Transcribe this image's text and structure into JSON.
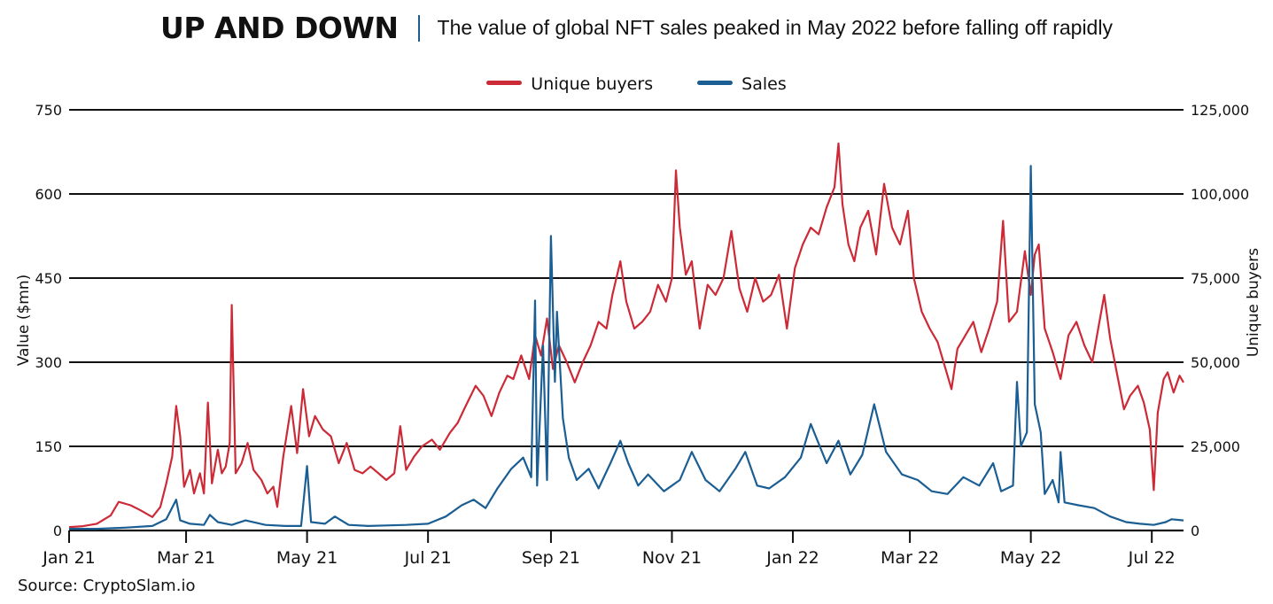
{
  "headline": "UP AND DOWN",
  "subtitle": "The value of global NFT sales peaked in May 2022 before falling off rapidly",
  "source": "Source: CryptoSlam.io",
  "colors": {
    "unique_buyers": "#cc2a36",
    "sales": "#1b5e93",
    "gridline": "#111111"
  },
  "chart_data": {
    "type": "line",
    "x_axis": {
      "tick_labels": [
        "Jan 21",
        "Mar 21",
        "May 21",
        "Jul 21",
        "Sep 21",
        "Nov 21",
        "Jan 22",
        "Mar 22",
        "May 22",
        "Jul 22"
      ],
      "tick_dates": [
        "2021-01-01",
        "2021-03-01",
        "2021-05-01",
        "2021-07-01",
        "2021-09-01",
        "2021-11-01",
        "2022-01-01",
        "2022-03-01",
        "2022-05-01",
        "2022-07-01"
      ],
      "range": [
        "2021-01-01",
        "2022-07-17"
      ]
    },
    "y_left": {
      "label": "Value ($mn)",
      "range": [
        0,
        750
      ],
      "ticks": [
        "0",
        "150",
        "300",
        "450",
        "600",
        "750"
      ]
    },
    "y_right": {
      "label": "Unique buyers",
      "range": [
        0,
        125000
      ],
      "ticks": [
        "0",
        "25,000",
        "50,000",
        "75,000",
        "100,000",
        "125,000"
      ]
    },
    "grid": "horizontal",
    "legend_position": "top-center",
    "series": [
      {
        "name": "Unique buyers",
        "axis": "right",
        "points": [
          [
            "2021-01-01",
            1000
          ],
          [
            "2021-01-08",
            1300
          ],
          [
            "2021-01-15",
            2000
          ],
          [
            "2021-01-22",
            4500
          ],
          [
            "2021-01-26",
            8500
          ],
          [
            "2021-02-01",
            7500
          ],
          [
            "2021-02-06",
            6000
          ],
          [
            "2021-02-12",
            4000
          ],
          [
            "2021-02-16",
            7000
          ],
          [
            "2021-02-19",
            14000
          ],
          [
            "2021-02-22",
            22000
          ],
          [
            "2021-02-24",
            37000
          ],
          [
            "2021-02-26",
            28000
          ],
          [
            "2021-02-28",
            13000
          ],
          [
            "2021-03-03",
            18000
          ],
          [
            "2021-03-05",
            11000
          ],
          [
            "2021-03-08",
            17000
          ],
          [
            "2021-03-10",
            11000
          ],
          [
            "2021-03-12",
            38000
          ],
          [
            "2021-03-14",
            14000
          ],
          [
            "2021-03-17",
            24000
          ],
          [
            "2021-03-19",
            17000
          ],
          [
            "2021-03-21",
            19000
          ],
          [
            "2021-03-23",
            26000
          ],
          [
            "2021-03-24",
            67000
          ],
          [
            "2021-03-26",
            17000
          ],
          [
            "2021-03-29",
            20000
          ],
          [
            "2021-04-01",
            26000
          ],
          [
            "2021-04-04",
            18000
          ],
          [
            "2021-04-08",
            15000
          ],
          [
            "2021-04-11",
            11000
          ],
          [
            "2021-04-14",
            13000
          ],
          [
            "2021-04-16",
            7000
          ],
          [
            "2021-04-19",
            22000
          ],
          [
            "2021-04-23",
            37000
          ],
          [
            "2021-04-26",
            23000
          ],
          [
            "2021-04-29",
            42000
          ],
          [
            "2021-05-02",
            28000
          ],
          [
            "2021-05-05",
            34000
          ],
          [
            "2021-05-09",
            30000
          ],
          [
            "2021-05-13",
            28000
          ],
          [
            "2021-05-17",
            20000
          ],
          [
            "2021-05-21",
            26000
          ],
          [
            "2021-05-25",
            18000
          ],
          [
            "2021-05-29",
            17000
          ],
          [
            "2021-06-02",
            19000
          ],
          [
            "2021-06-06",
            17000
          ],
          [
            "2021-06-10",
            15000
          ],
          [
            "2021-06-14",
            17000
          ],
          [
            "2021-06-17",
            31000
          ],
          [
            "2021-06-20",
            18000
          ],
          [
            "2021-06-24",
            22000
          ],
          [
            "2021-06-28",
            25000
          ],
          [
            "2021-07-03",
            27000
          ],
          [
            "2021-07-07",
            24000
          ],
          [
            "2021-07-12",
            29000
          ],
          [
            "2021-07-16",
            32000
          ],
          [
            "2021-07-20",
            37000
          ],
          [
            "2021-07-25",
            43000
          ],
          [
            "2021-07-29",
            40000
          ],
          [
            "2021-08-02",
            34000
          ],
          [
            "2021-08-06",
            41000
          ],
          [
            "2021-08-10",
            46000
          ],
          [
            "2021-08-13",
            45000
          ],
          [
            "2021-08-17",
            52000
          ],
          [
            "2021-08-21",
            45000
          ],
          [
            "2021-08-24",
            58000
          ],
          [
            "2021-08-27",
            52000
          ],
          [
            "2021-08-30",
            63000
          ],
          [
            "2021-09-02",
            48000
          ],
          [
            "2021-09-05",
            55000
          ],
          [
            "2021-09-09",
            50000
          ],
          [
            "2021-09-13",
            44000
          ],
          [
            "2021-09-17",
            50000
          ],
          [
            "2021-09-21",
            55000
          ],
          [
            "2021-09-25",
            62000
          ],
          [
            "2021-09-29",
            60000
          ],
          [
            "2021-10-02",
            70000
          ],
          [
            "2021-10-06",
            80000
          ],
          [
            "2021-10-09",
            68000
          ],
          [
            "2021-10-13",
            60000
          ],
          [
            "2021-10-17",
            62000
          ],
          [
            "2021-10-21",
            65000
          ],
          [
            "2021-10-25",
            73000
          ],
          [
            "2021-10-29",
            68000
          ],
          [
            "2021-11-01",
            75000
          ],
          [
            "2021-11-03",
            107000
          ],
          [
            "2021-11-05",
            90000
          ],
          [
            "2021-11-08",
            76000
          ],
          [
            "2021-11-11",
            80000
          ],
          [
            "2021-11-15",
            60000
          ],
          [
            "2021-11-19",
            73000
          ],
          [
            "2021-11-23",
            70000
          ],
          [
            "2021-11-27",
            75000
          ],
          [
            "2021-12-01",
            89000
          ],
          [
            "2021-12-05",
            72000
          ],
          [
            "2021-12-09",
            65000
          ],
          [
            "2021-12-13",
            75000
          ],
          [
            "2021-12-17",
            68000
          ],
          [
            "2021-12-21",
            70000
          ],
          [
            "2021-12-25",
            76000
          ],
          [
            "2021-12-29",
            60000
          ],
          [
            "2022-01-02",
            78000
          ],
          [
            "2022-01-06",
            85000
          ],
          [
            "2022-01-10",
            90000
          ],
          [
            "2022-01-14",
            88000
          ],
          [
            "2022-01-18",
            96000
          ],
          [
            "2022-01-22",
            102000
          ],
          [
            "2022-01-24",
            115000
          ],
          [
            "2022-01-26",
            97000
          ],
          [
            "2022-01-29",
            85000
          ],
          [
            "2022-02-01",
            80000
          ],
          [
            "2022-02-04",
            90000
          ],
          [
            "2022-02-08",
            95000
          ],
          [
            "2022-02-12",
            82000
          ],
          [
            "2022-02-16",
            103000
          ],
          [
            "2022-02-20",
            90000
          ],
          [
            "2022-02-24",
            85000
          ],
          [
            "2022-02-28",
            95000
          ],
          [
            "2022-03-03",
            75000
          ],
          [
            "2022-03-07",
            65000
          ],
          [
            "2022-03-11",
            60000
          ],
          [
            "2022-03-15",
            56000
          ],
          [
            "2022-03-19",
            48000
          ],
          [
            "2022-03-22",
            42000
          ],
          [
            "2022-03-25",
            54000
          ],
          [
            "2022-03-29",
            58000
          ],
          [
            "2022-04-02",
            62000
          ],
          [
            "2022-04-06",
            53000
          ],
          [
            "2022-04-10",
            60000
          ],
          [
            "2022-04-14",
            68000
          ],
          [
            "2022-04-17",
            92000
          ],
          [
            "2022-04-20",
            62000
          ],
          [
            "2022-04-24",
            65000
          ],
          [
            "2022-04-28",
            83000
          ],
          [
            "2022-05-01",
            70000
          ],
          [
            "2022-05-03",
            82000
          ],
          [
            "2022-05-05",
            85000
          ],
          [
            "2022-05-08",
            60000
          ],
          [
            "2022-05-12",
            53000
          ],
          [
            "2022-05-16",
            45000
          ],
          [
            "2022-05-20",
            58000
          ],
          [
            "2022-05-24",
            62000
          ],
          [
            "2022-05-28",
            55000
          ],
          [
            "2022-06-01",
            50000
          ],
          [
            "2022-06-04",
            60000
          ],
          [
            "2022-06-07",
            70000
          ],
          [
            "2022-06-10",
            57000
          ],
          [
            "2022-06-14",
            45000
          ],
          [
            "2022-06-17",
            36000
          ],
          [
            "2022-06-20",
            40000
          ],
          [
            "2022-06-24",
            43000
          ],
          [
            "2022-06-27",
            38000
          ],
          [
            "2022-06-30",
            30000
          ],
          [
            "2022-07-02",
            12000
          ],
          [
            "2022-07-04",
            35000
          ],
          [
            "2022-07-07",
            45000
          ],
          [
            "2022-07-09",
            47000
          ],
          [
            "2022-07-12",
            41000
          ],
          [
            "2022-07-15",
            46000
          ],
          [
            "2022-07-17",
            44000
          ]
        ]
      },
      {
        "name": "Sales",
        "axis": "left",
        "points": [
          [
            "2021-01-01",
            3
          ],
          [
            "2021-01-15",
            3
          ],
          [
            "2021-01-29",
            5
          ],
          [
            "2021-02-12",
            8
          ],
          [
            "2021-02-19",
            20
          ],
          [
            "2021-02-24",
            55
          ],
          [
            "2021-02-26",
            18
          ],
          [
            "2021-03-03",
            12
          ],
          [
            "2021-03-10",
            10
          ],
          [
            "2021-03-13",
            28
          ],
          [
            "2021-03-17",
            15
          ],
          [
            "2021-03-24",
            10
          ],
          [
            "2021-03-31",
            18
          ],
          [
            "2021-04-10",
            10
          ],
          [
            "2021-04-20",
            8
          ],
          [
            "2021-04-28",
            8
          ],
          [
            "2021-05-01",
            115
          ],
          [
            "2021-05-03",
            15
          ],
          [
            "2021-05-10",
            12
          ],
          [
            "2021-05-15",
            25
          ],
          [
            "2021-05-22",
            10
          ],
          [
            "2021-06-01",
            8
          ],
          [
            "2021-06-10",
            9
          ],
          [
            "2021-06-20",
            10
          ],
          [
            "2021-07-01",
            12
          ],
          [
            "2021-07-10",
            25
          ],
          [
            "2021-07-18",
            45
          ],
          [
            "2021-07-24",
            55
          ],
          [
            "2021-07-30",
            40
          ],
          [
            "2021-08-05",
            75
          ],
          [
            "2021-08-12",
            110
          ],
          [
            "2021-08-18",
            130
          ],
          [
            "2021-08-22",
            95
          ],
          [
            "2021-08-24",
            410
          ],
          [
            "2021-08-25",
            80
          ],
          [
            "2021-08-28",
            330
          ],
          [
            "2021-08-30",
            90
          ],
          [
            "2021-09-01",
            525
          ],
          [
            "2021-09-03",
            265
          ],
          [
            "2021-09-04",
            390
          ],
          [
            "2021-09-07",
            200
          ],
          [
            "2021-09-10",
            130
          ],
          [
            "2021-09-14",
            90
          ],
          [
            "2021-09-20",
            110
          ],
          [
            "2021-09-25",
            75
          ],
          [
            "2021-10-01",
            120
          ],
          [
            "2021-10-06",
            160
          ],
          [
            "2021-10-10",
            120
          ],
          [
            "2021-10-15",
            80
          ],
          [
            "2021-10-20",
            100
          ],
          [
            "2021-10-28",
            70
          ],
          [
            "2021-11-05",
            90
          ],
          [
            "2021-11-11",
            140
          ],
          [
            "2021-11-18",
            90
          ],
          [
            "2021-11-25",
            70
          ],
          [
            "2021-12-03",
            110
          ],
          [
            "2021-12-08",
            140
          ],
          [
            "2021-12-14",
            80
          ],
          [
            "2021-12-20",
            75
          ],
          [
            "2021-12-28",
            95
          ],
          [
            "2022-01-05",
            130
          ],
          [
            "2022-01-10",
            190
          ],
          [
            "2022-01-18",
            120
          ],
          [
            "2022-01-24",
            160
          ],
          [
            "2022-01-30",
            100
          ],
          [
            "2022-02-05",
            135
          ],
          [
            "2022-02-11",
            225
          ],
          [
            "2022-02-17",
            140
          ],
          [
            "2022-02-25",
            100
          ],
          [
            "2022-03-05",
            90
          ],
          [
            "2022-03-12",
            70
          ],
          [
            "2022-03-20",
            65
          ],
          [
            "2022-03-28",
            95
          ],
          [
            "2022-04-05",
            80
          ],
          [
            "2022-04-12",
            120
          ],
          [
            "2022-04-16",
            70
          ],
          [
            "2022-04-22",
            80
          ],
          [
            "2022-04-24",
            265
          ],
          [
            "2022-04-26",
            150
          ],
          [
            "2022-04-29",
            175
          ],
          [
            "2022-05-01",
            650
          ],
          [
            "2022-05-03",
            225
          ],
          [
            "2022-05-06",
            175
          ],
          [
            "2022-05-08",
            65
          ],
          [
            "2022-05-12",
            90
          ],
          [
            "2022-05-15",
            50
          ],
          [
            "2022-05-16",
            140
          ],
          [
            "2022-05-18",
            50
          ],
          [
            "2022-05-25",
            45
          ],
          [
            "2022-06-02",
            40
          ],
          [
            "2022-06-10",
            25
          ],
          [
            "2022-06-18",
            15
          ],
          [
            "2022-06-25",
            12
          ],
          [
            "2022-07-02",
            10
          ],
          [
            "2022-07-08",
            15
          ],
          [
            "2022-07-11",
            20
          ],
          [
            "2022-07-17",
            18
          ]
        ]
      }
    ]
  }
}
